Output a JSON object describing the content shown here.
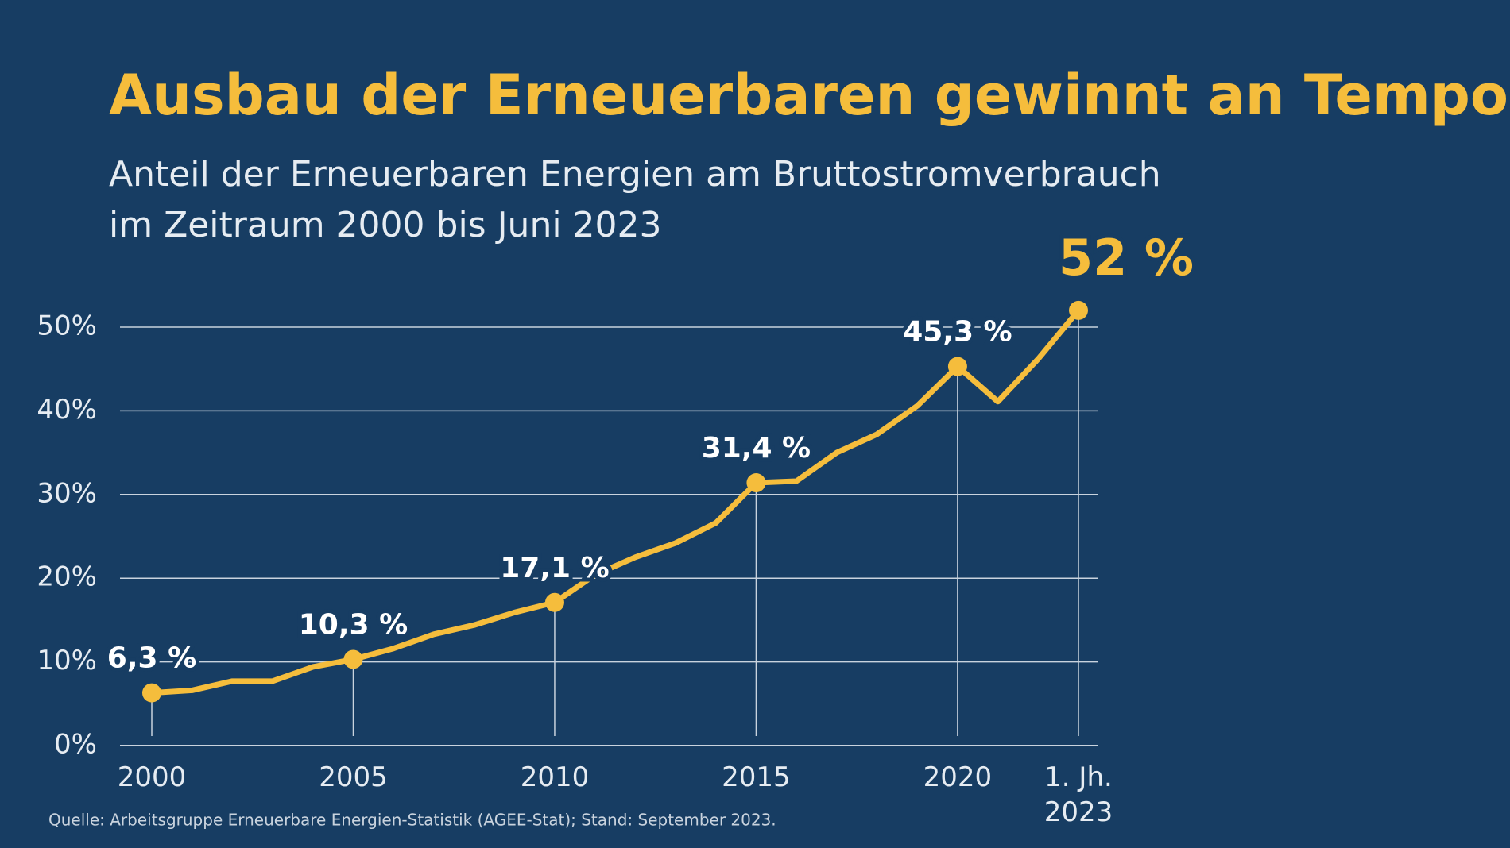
{
  "chart_data": {
    "type": "line",
    "title": "Ausbau der Erneuerbaren gewinnt an Tempo",
    "subtitle": [
      "Anteil der Erneuerbaren Energien am Bruttostromverbrauch",
      "im Zeitraum 2000 bis Juni 2023"
    ],
    "source": "Quelle: Arbeitsgruppe Erneuerbare Energien-Statistik (AGEE-Stat); Stand: September 2023.",
    "categories": [
      "2000",
      null,
      null,
      null,
      null,
      "2005",
      null,
      null,
      null,
      null,
      "2010",
      null,
      null,
      null,
      null,
      "2015",
      null,
      null,
      null,
      null,
      "2020",
      null,
      null,
      "1. Jh. 2023"
    ],
    "values": [
      6.3,
      6.6,
      7.7,
      7.7,
      9.4,
      10.3,
      11.6,
      13.3,
      14.4,
      15.9,
      17.1,
      20.4,
      22.5,
      24.2,
      26.6,
      31.4,
      31.6,
      35.0,
      37.2,
      40.6,
      45.3,
      41.1,
      46.2,
      52
    ],
    "value_labels": [
      "6,3 %",
      null,
      null,
      null,
      null,
      "10,3 %",
      null,
      null,
      null,
      null,
      "17,1 %",
      null,
      null,
      null,
      null,
      "31,4 %",
      null,
      null,
      null,
      null,
      "45,3 %",
      null,
      null,
      "52 %"
    ],
    "color": "#f5bd3c",
    "ylim": [
      0,
      50
    ],
    "yticks": [
      {
        "value": 0,
        "label": "0%"
      },
      {
        "value": 10,
        "label": "10%"
      },
      {
        "value": 20,
        "label": "20%"
      },
      {
        "value": 30,
        "label": "30%"
      },
      {
        "value": 40,
        "label": "40%"
      },
      {
        "value": 50,
        "label": "50%"
      }
    ],
    "grid": true
  }
}
